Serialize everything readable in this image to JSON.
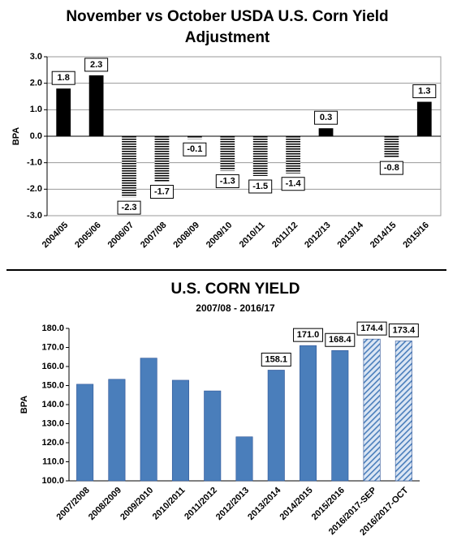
{
  "chart_data": [
    {
      "type": "bar",
      "title": "November vs October USDA U.S. Corn Yield Adjustment",
      "ylabel": "BPA",
      "categories": [
        "2004/05",
        "2005/06",
        "2006/07",
        "2007/08",
        "2008/09",
        "2009/10",
        "2010/11",
        "2011/12",
        "2012/13",
        "2013/14",
        "2014/15",
        "2015/16"
      ],
      "values": [
        1.8,
        2.3,
        -2.3,
        -1.7,
        -0.1,
        -1.3,
        -1.5,
        -1.4,
        0.3,
        null,
        -0.8,
        1.3
      ],
      "color": "#000000",
      "negative_fill": "horizontal-stripes",
      "negative_label_color": "#a00000",
      "ylim": [
        -3,
        3
      ],
      "yticks": [
        {
          "value": -3,
          "label": "-3.0"
        },
        {
          "value": -2,
          "label": "-2.0"
        },
        {
          "value": -1,
          "label": "-1.0"
        },
        {
          "value": 0,
          "label": "0.0"
        },
        {
          "value": 1,
          "label": "1.0"
        },
        {
          "value": 2,
          "label": "2.0"
        },
        {
          "value": 3,
          "label": "3.0"
        }
      ],
      "grid": true
    },
    {
      "type": "bar",
      "title": "U.S. CORN YIELD",
      "subtitle": "2007/08 - 2016/17",
      "ylabel": "BPA",
      "categories": [
        "2007/2008",
        "2008/2009",
        "2009/2010",
        "2010/2011",
        "2011/2012",
        "2012/2013",
        "2013/2014",
        "2014/2015",
        "2015/2016",
        "2016/2017-SEP",
        "2016/2017-OCT"
      ],
      "values": [
        150.7,
        153.3,
        164.4,
        152.8,
        147.2,
        123.1,
        158.1,
        171.0,
        168.4,
        174.4,
        173.4
      ],
      "value_labels": [
        null,
        null,
        null,
        null,
        null,
        null,
        "158.1",
        "171.0",
        "168.4",
        "174.4",
        "173.4"
      ],
      "color": "#4a7ebb",
      "bar_fill": [
        "solid",
        "solid",
        "solid",
        "solid",
        "solid",
        "solid",
        "solid",
        "solid",
        "solid",
        "hatched",
        "hatched"
      ],
      "ylim": [
        100,
        180
      ],
      "yticks": [
        {
          "value": 100,
          "label": "100.0"
        },
        {
          "value": 110,
          "label": "110.0"
        },
        {
          "value": 120,
          "label": "120.0"
        },
        {
          "value": 130,
          "label": "130.0"
        },
        {
          "value": 140,
          "label": "140.0"
        },
        {
          "value": 150,
          "label": "150.0"
        },
        {
          "value": 160,
          "label": "160.0"
        },
        {
          "value": 170,
          "label": "170.0"
        },
        {
          "value": 180,
          "label": "180.0"
        }
      ],
      "grid": false
    }
  ]
}
